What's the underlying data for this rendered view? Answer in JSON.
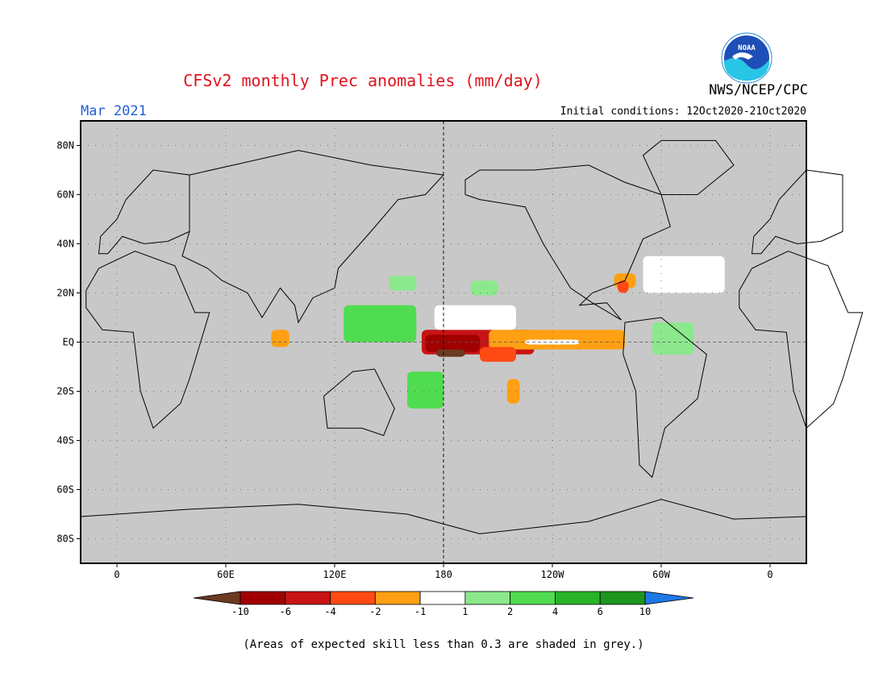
{
  "title": "CFSv2 monthly Prec anomalies (mm/day)",
  "agency": "NWS/NCEP/CPC",
  "logo_text": "NOAA",
  "month_label": "Mar 2021",
  "initial_conditions": "Initial conditions: 12Oct2020-21Oct2020",
  "footnote": "(Areas of expected skill less than 0.3 are shaded in grey.)",
  "map": {
    "lon_range": [
      -20,
      380
    ],
    "lat_range": [
      -90,
      90
    ],
    "background_color": "#c8c8c8",
    "lat_ticks": [
      {
        "lat": 80,
        "label": "80N"
      },
      {
        "lat": 60,
        "label": "60N"
      },
      {
        "lat": 40,
        "label": "40N"
      },
      {
        "lat": 20,
        "label": "20N"
      },
      {
        "lat": 0,
        "label": "EQ"
      },
      {
        "lat": -20,
        "label": "20S"
      },
      {
        "lat": -40,
        "label": "40S"
      },
      {
        "lat": -60,
        "label": "60S"
      },
      {
        "lat": -80,
        "label": "80S"
      }
    ],
    "lon_ticks": [
      {
        "lon": 0,
        "label": "0"
      },
      {
        "lon": 60,
        "label": "60E"
      },
      {
        "lon": 120,
        "label": "120E"
      },
      {
        "lon": 180,
        "label": "180"
      },
      {
        "lon": 240,
        "label": "120W"
      },
      {
        "lon": 300,
        "label": "60W"
      },
      {
        "lon": 360,
        "label": "0"
      }
    ],
    "dashed_equator_lat": 0,
    "dashed_meridian_lon": 180
  },
  "colorbar": {
    "tick_labels": [
      "-10",
      "-6",
      "-4",
      "-2",
      "-1",
      "1",
      "2",
      "4",
      "6",
      "10"
    ],
    "low_end_color": "#6b3a20",
    "high_end_color": "#1e78e6",
    "colors": [
      "#a00000",
      "#c81414",
      "#ff4a14",
      "#ffa014",
      "#ffffff",
      "#8ce88c",
      "#50dc50",
      "#28b428",
      "#1e961e"
    ]
  },
  "anomaly_regions": [
    {
      "name": "central-pacific-dry",
      "color": "#c81414",
      "lat": [
        -5,
        5
      ],
      "lon": [
        168,
        230
      ]
    },
    {
      "name": "central-pacific-strong-dry",
      "color": "#a00000",
      "lat": [
        -4,
        3
      ],
      "lon": [
        170,
        200
      ]
    },
    {
      "name": "dateline-very-dry",
      "color": "#6b3a20",
      "lat": [
        -6,
        -3
      ],
      "lon": [
        176,
        192
      ]
    },
    {
      "name": "east-pacific-dry",
      "color": "#ffa014",
      "lat": [
        -3,
        5
      ],
      "lon": [
        205,
        280
      ]
    },
    {
      "name": "east-pacific-moderate-dry",
      "color": "#ff4a14",
      "lat": [
        -8,
        -2
      ],
      "lon": [
        200,
        220
      ]
    },
    {
      "name": "equatorial-white-band",
      "color": "#ffffff",
      "lat": [
        -1,
        1
      ],
      "lon": [
        225,
        255
      ]
    },
    {
      "name": "caribbean-dry",
      "color": "#ffa014",
      "lat": [
        22,
        28
      ],
      "lon": [
        274,
        286
      ]
    },
    {
      "name": "caribbean-red",
      "color": "#ff4a14",
      "lat": [
        20,
        25
      ],
      "lon": [
        276,
        282
      ]
    },
    {
      "name": "west-pacific-wet",
      "color": "#28b428",
      "lat": [
        3,
        10
      ],
      "lon": [
        130,
        165
      ]
    },
    {
      "name": "west-pacific-wet-outer",
      "color": "#50dc50",
      "lat": [
        0,
        15
      ],
      "lon": [
        125,
        165
      ]
    },
    {
      "name": "south-pacific-wet",
      "color": "#50dc50",
      "lat": [
        -27,
        -12
      ],
      "lon": [
        160,
        180
      ]
    },
    {
      "name": "central-north-pacific-wet",
      "color": "#8ce88c",
      "lat": [
        19,
        25
      ],
      "lon": [
        195,
        210
      ]
    },
    {
      "name": "northwest-pacific-wet",
      "color": "#8ce88c",
      "lat": [
        21,
        27
      ],
      "lon": [
        150,
        165
      ]
    },
    {
      "name": "south-america-wet",
      "color": "#8ce88c",
      "lat": [
        -5,
        8
      ],
      "lon": [
        295,
        318
      ]
    },
    {
      "name": "south-pacific-dry-patch",
      "color": "#ffa014",
      "lat": [
        -25,
        -15
      ],
      "lon": [
        215,
        222
      ]
    },
    {
      "name": "maritime-dry-patch",
      "color": "#ffa014",
      "lat": [
        -2,
        5
      ],
      "lon": [
        85,
        95
      ]
    },
    {
      "name": "atlantic-white",
      "color": "#ffffff",
      "lat": [
        20,
        35
      ],
      "lon": [
        290,
        335
      ]
    },
    {
      "name": "pacific-white",
      "color": "#ffffff",
      "lat": [
        5,
        15
      ],
      "lon": [
        175,
        220
      ]
    }
  ]
}
